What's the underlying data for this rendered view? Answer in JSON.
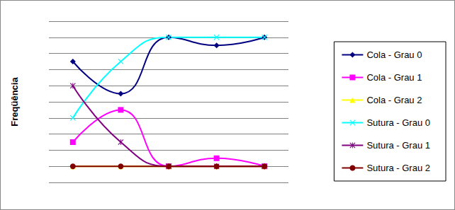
{
  "chart_data": {
    "type": "line",
    "y_label": "Freqüência",
    "categories": [
      null,
      null,
      null,
      null,
      null
    ],
    "series": [
      {
        "name": "Cola - Grau 0",
        "color": "#000080",
        "marker": "diamond",
        "values": [
          7.5,
          5.5,
          9,
          8.5,
          9
        ]
      },
      {
        "name": "Cola - Grau 1",
        "color": "#ff00ff",
        "marker": "square",
        "values": [
          2.5,
          4.5,
          1,
          1.5,
          1
        ]
      },
      {
        "name": "Cola - Grau 2",
        "color": "#ffff00",
        "marker": "triangle",
        "values": [
          1,
          1,
          1,
          1,
          1
        ]
      },
      {
        "name": "Sutura - Grau 0",
        "color": "#00ffff",
        "marker": "x",
        "values": [
          4,
          7.5,
          9,
          9,
          9
        ]
      },
      {
        "name": "Sutura - Grau 1",
        "color": "#800080",
        "marker": "star",
        "values": [
          6,
          2.5,
          1,
          1,
          1
        ]
      },
      {
        "name": "Sutura - Grau 2",
        "color": "#800000",
        "marker": "circle",
        "values": [
          1,
          1,
          1,
          1,
          1
        ]
      }
    ],
    "ylim": [
      0,
      10
    ],
    "yticks": [
      0,
      1,
      2,
      3,
      4,
      5,
      6,
      7,
      8,
      9,
      10
    ],
    "grid": true,
    "legend": "right",
    "tick_labels": false
  }
}
